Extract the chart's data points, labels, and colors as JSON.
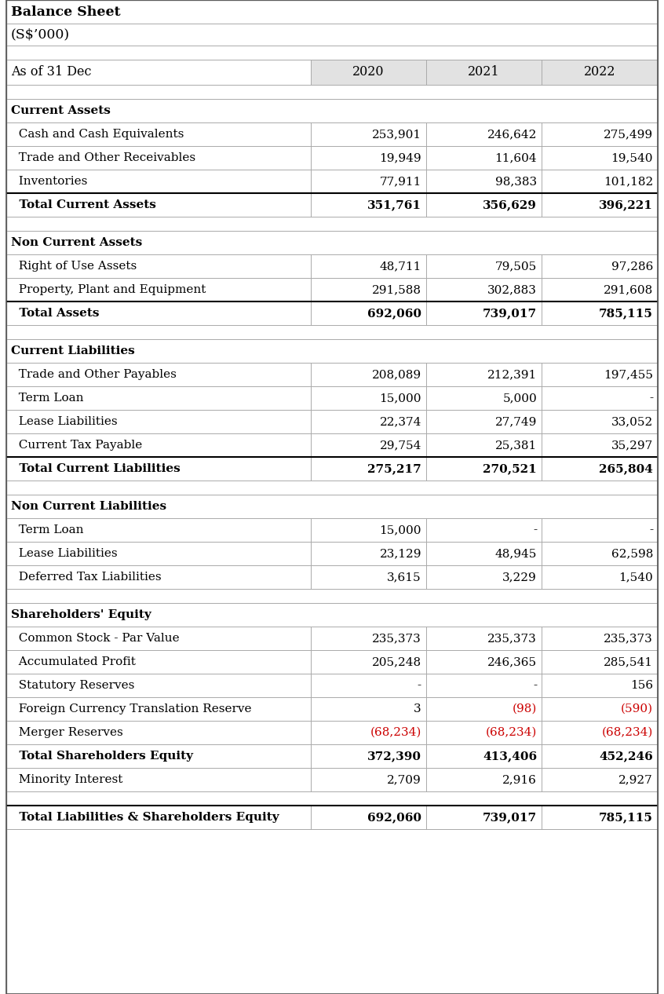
{
  "title_line1": "Balance Sheet",
  "title_line2": "(S$’000)",
  "header_label": "As of 31 Dec",
  "years": [
    "2020",
    "2021",
    "2022"
  ],
  "header_bg": "#e8e8e8",
  "rows": [
    {
      "label": "Current Assets",
      "values": [
        "",
        "",
        ""
      ],
      "style": "section"
    },
    {
      "label": "  Cash and Cash Equivalents",
      "values": [
        "253,901",
        "246,642",
        "275,499"
      ],
      "style": "normal"
    },
    {
      "label": "  Trade and Other Receivables",
      "values": [
        "19,949",
        "11,604",
        "19,540"
      ],
      "style": "normal"
    },
    {
      "label": "  Inventories",
      "values": [
        "77,911",
        "98,383",
        "101,182"
      ],
      "style": "normal",
      "bottom_line": true
    },
    {
      "label": "  Total Current Assets",
      "values": [
        "351,761",
        "356,629",
        "396,221"
      ],
      "style": "total"
    },
    {
      "label": "",
      "values": [
        "",
        "",
        ""
      ],
      "style": "spacer"
    },
    {
      "label": "Non Current Assets",
      "values": [
        "",
        "",
        ""
      ],
      "style": "section"
    },
    {
      "label": "  Right of Use Assets",
      "values": [
        "48,711",
        "79,505",
        "97,286"
      ],
      "style": "normal"
    },
    {
      "label": "  Property, Plant and Equipment",
      "values": [
        "291,588",
        "302,883",
        "291,608"
      ],
      "style": "normal",
      "bottom_line": true
    },
    {
      "label": "  Total Assets",
      "values": [
        "692,060",
        "739,017",
        "785,115"
      ],
      "style": "total"
    },
    {
      "label": "",
      "values": [
        "",
        "",
        ""
      ],
      "style": "spacer"
    },
    {
      "label": "Current Liabilities",
      "values": [
        "",
        "",
        ""
      ],
      "style": "section"
    },
    {
      "label": "  Trade and Other Payables",
      "values": [
        "208,089",
        "212,391",
        "197,455"
      ],
      "style": "normal"
    },
    {
      "label": "  Term Loan",
      "values": [
        "15,000",
        "5,000",
        "-"
      ],
      "style": "normal"
    },
    {
      "label": "  Lease Liabilities",
      "values": [
        "22,374",
        "27,749",
        "33,052"
      ],
      "style": "normal"
    },
    {
      "label": "  Current Tax Payable",
      "values": [
        "29,754",
        "25,381",
        "35,297"
      ],
      "style": "normal",
      "bottom_line": true
    },
    {
      "label": "  Total Current Liabilities",
      "values": [
        "275,217",
        "270,521",
        "265,804"
      ],
      "style": "total"
    },
    {
      "label": "",
      "values": [
        "",
        "",
        ""
      ],
      "style": "spacer"
    },
    {
      "label": "Non Current Liabilities",
      "values": [
        "",
        "",
        ""
      ],
      "style": "section"
    },
    {
      "label": "  Term Loan",
      "values": [
        "15,000",
        "-",
        "-"
      ],
      "style": "normal"
    },
    {
      "label": "  Lease Liabilities",
      "values": [
        "23,129",
        "48,945",
        "62,598"
      ],
      "style": "normal"
    },
    {
      "label": "  Deferred Tax Liabilities",
      "values": [
        "3,615",
        "3,229",
        "1,540"
      ],
      "style": "normal"
    },
    {
      "label": "",
      "values": [
        "",
        "",
        ""
      ],
      "style": "spacer"
    },
    {
      "label": "Shareholders' Equity",
      "values": [
        "",
        "",
        ""
      ],
      "style": "section"
    },
    {
      "label": "  Common Stock - Par Value",
      "values": [
        "235,373",
        "235,373",
        "235,373"
      ],
      "style": "normal"
    },
    {
      "label": "  Accumulated Profit",
      "values": [
        "205,248",
        "246,365",
        "285,541"
      ],
      "style": "normal"
    },
    {
      "label": "  Statutory Reserves",
      "values": [
        "-",
        "-",
        "156"
      ],
      "style": "normal"
    },
    {
      "label": "  Foreign Currency Translation Reserve",
      "values": [
        "3",
        "(98)",
        "(590)"
      ],
      "style": "normal",
      "red_cols": [
        1,
        2
      ]
    },
    {
      "label": "  Merger Reserves",
      "values": [
        "(68,234)",
        "(68,234)",
        "(68,234)"
      ],
      "style": "normal",
      "red_cols": [
        0,
        1,
        2
      ]
    },
    {
      "label": "  Total Shareholders Equity",
      "values": [
        "372,390",
        "413,406",
        "452,246"
      ],
      "style": "total"
    },
    {
      "label": "  Minority Interest",
      "values": [
        "2,709",
        "2,916",
        "2,927"
      ],
      "style": "normal"
    },
    {
      "label": "",
      "values": [
        "",
        "",
        ""
      ],
      "style": "spacer"
    },
    {
      "label": "  Total Liabilities & Shareholders Equity",
      "values": [
        "692,060",
        "739,017",
        "785,115"
      ],
      "style": "total",
      "top_thick": true
    }
  ],
  "bg_white": "#ffffff",
  "bg_header": "#e2e2e2",
  "line_color": "#aaaaaa",
  "thick_color": "#000000",
  "text_color": "#000000",
  "red_color": "#cc0000",
  "font_size": 11.0,
  "title_font_size": 12.5,
  "header_font_size": 11.5
}
